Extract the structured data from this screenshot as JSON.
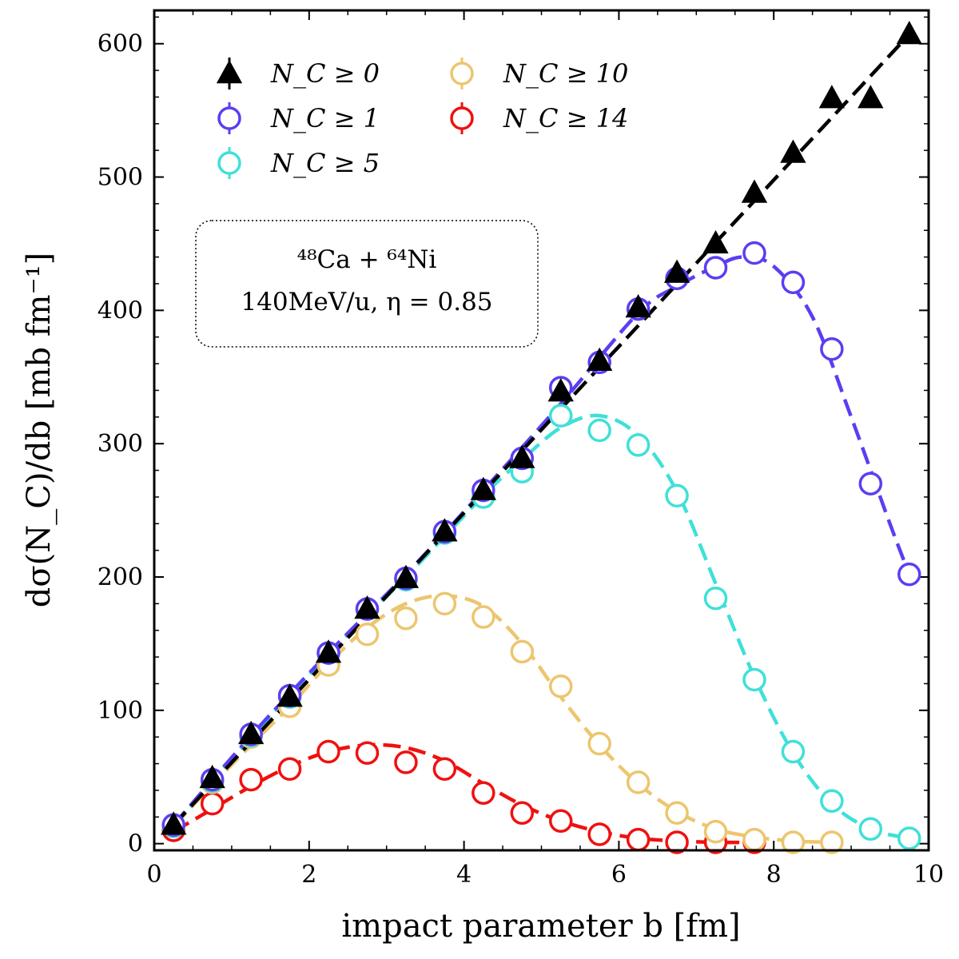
{
  "chart_data": {
    "type": "line",
    "xlabel": "impact parameter b [fm]",
    "ylabel": "dσ(N_C)/db [mb fm⁻¹]",
    "xlim": [
      0,
      10
    ],
    "ylim": [
      -5,
      625
    ],
    "x_ticks": [
      0,
      2,
      4,
      6,
      8,
      10
    ],
    "y_ticks": [
      0,
      100,
      200,
      300,
      400,
      500,
      600
    ],
    "legend_position": "top-left",
    "annotation_line1": "⁴⁸Ca + ⁶⁴Ni",
    "annotation_line2": "140MeV/u, η = 0.85",
    "series": [
      {
        "name": "N_C ≥ 0",
        "label": "N_C ≥ 0",
        "marker": "triangle",
        "color": "#000000",
        "x": [
          0.25,
          0.75,
          1.25,
          1.75,
          2.25,
          2.75,
          3.25,
          3.75,
          4.25,
          4.75,
          5.25,
          5.75,
          6.25,
          6.75,
          7.25,
          7.75,
          8.25,
          8.75,
          9.25,
          9.75
        ],
        "values": [
          14,
          49,
          82,
          110,
          143,
          176,
          199,
          234,
          265,
          289,
          339,
          362,
          402,
          428,
          450,
          488,
          518,
          559,
          559,
          607
        ],
        "fit_x": [
          0.25,
          9.75
        ],
        "fit_y": [
          14,
          607
        ]
      },
      {
        "name": "N_C ≥ 1",
        "label": "N_C ≥ 1",
        "marker": "circle",
        "color": "#5b3ef2",
        "x": [
          0.25,
          0.75,
          1.25,
          1.75,
          2.25,
          2.75,
          3.25,
          3.75,
          4.25,
          4.75,
          5.25,
          5.75,
          6.25,
          6.75,
          7.25,
          7.75,
          8.25,
          8.75,
          9.25,
          9.75
        ],
        "values": [
          14,
          48,
          82,
          111,
          143,
          176,
          199,
          234,
          265,
          289,
          342,
          361,
          401,
          424,
          432,
          443,
          421,
          371,
          270,
          202
        ],
        "fit_x": [
          0.25,
          1.25,
          2.25,
          3.25,
          4.25,
          5.25,
          6.25,
          6.75,
          7.25,
          7.6,
          8.0,
          8.5,
          9.0,
          9.5,
          9.75
        ],
        "fit_y": [
          14,
          81,
          143,
          202,
          265,
          330,
          398,
          418,
          433,
          440,
          433,
          395,
          320,
          240,
          202
        ]
      },
      {
        "name": "N_C ≥ 5",
        "label": "N_C ≥ 5",
        "marker": "circle",
        "color": "#3fe0d8",
        "x": [
          0.25,
          0.75,
          1.25,
          1.75,
          2.25,
          2.75,
          3.25,
          3.75,
          4.25,
          4.75,
          5.25,
          5.75,
          6.25,
          6.75,
          7.25,
          7.75,
          8.25,
          8.75,
          9.25,
          9.75
        ],
        "values": [
          13,
          47,
          81,
          110,
          143,
          176,
          198,
          233,
          260,
          279,
          321,
          310,
          299,
          261,
          184,
          123,
          69,
          32,
          11,
          4
        ],
        "fit_x": [
          0.25,
          1.25,
          2.25,
          3.25,
          4.25,
          4.75,
          5.25,
          5.75,
          6.25,
          6.75,
          7.25,
          7.75,
          8.25,
          8.75,
          9.25,
          9.75
        ],
        "fit_y": [
          13,
          80,
          142,
          200,
          261,
          288,
          312,
          321,
          306,
          264,
          195,
          125,
          68,
          30,
          11,
          4
        ]
      },
      {
        "name": "N_C ≥ 10",
        "label": "N_C ≥ 10",
        "marker": "circle",
        "color": "#ecc66e",
        "x": [
          0.25,
          0.75,
          1.25,
          1.75,
          2.25,
          2.75,
          3.25,
          3.75,
          4.25,
          4.75,
          5.25,
          5.75,
          6.25,
          6.75,
          7.25,
          7.75,
          8.25,
          8.75
        ],
        "values": [
          13,
          46,
          80,
          103,
          134,
          157,
          169,
          180,
          170,
          144,
          118,
          75,
          46,
          23,
          9,
          3,
          1,
          1
        ],
        "fit_x": [
          0.25,
          0.75,
          1.25,
          1.75,
          2.25,
          2.75,
          3.25,
          3.75,
          4.25,
          4.75,
          5.25,
          5.75,
          6.25,
          6.75,
          7.25,
          7.75,
          8.25,
          8.75
        ],
        "fit_y": [
          13,
          44,
          74,
          103,
          135,
          162,
          180,
          186,
          178,
          150,
          110,
          74,
          45,
          24,
          11,
          5,
          2,
          1
        ]
      },
      {
        "name": "N_C ≥ 14",
        "label": "N_C ≥ 14",
        "marker": "circle",
        "color": "#f01010",
        "x": [
          0.25,
          0.75,
          1.25,
          1.75,
          2.25,
          2.75,
          3.25,
          3.75,
          4.25,
          4.75,
          5.25,
          5.75,
          6.25,
          6.75,
          7.25,
          7.75
        ],
        "values": [
          10,
          30,
          48,
          56,
          69,
          68,
          61,
          56,
          38,
          23,
          17,
          7,
          3,
          1,
          1,
          1
        ],
        "fit_x": [
          0.25,
          0.75,
          1.25,
          1.75,
          2.25,
          2.75,
          3.25,
          3.75,
          4.25,
          4.75,
          5.25,
          5.75,
          6.25,
          6.75,
          7.25,
          7.75
        ],
        "fit_y": [
          9,
          26,
          43,
          58,
          69,
          74,
          72,
          62,
          45,
          29,
          17,
          9,
          4,
          2,
          1,
          1
        ]
      }
    ]
  }
}
